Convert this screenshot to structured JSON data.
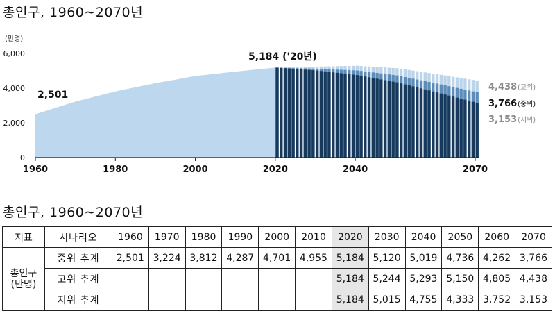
{
  "title": "총인구, 1960∼2070년",
  "table_title": "총인구, 1960∼2070년",
  "chart_data": {
    "type": "area",
    "ylabel": "(만명)",
    "ylim": [
      0,
      6000
    ],
    "yticks": [
      "0",
      "2,000",
      "4,000",
      "6,000"
    ],
    "xlim": [
      1960,
      2070
    ],
    "xticks": [
      "1960",
      "1980",
      "2000",
      "2020",
      "2040",
      "2070"
    ],
    "historical": {
      "x": [
        1960,
        1970,
        1980,
        1990,
        2000,
        2010,
        2020
      ],
      "values": [
        2501,
        3224,
        3812,
        4287,
        4701,
        4955,
        5184
      ]
    },
    "projection_x": [
      2020,
      2030,
      2040,
      2050,
      2060,
      2070
    ],
    "series": [
      {
        "key": "high",
        "values": [
          5184,
          5244,
          5293,
          5150,
          4805,
          4438
        ],
        "color": "#bcd4ea"
      },
      {
        "key": "medium",
        "values": [
          5184,
          5120,
          5019,
          4736,
          4262,
          3766
        ],
        "color": "#5b8db8"
      },
      {
        "key": "low",
        "values": [
          5184,
          5015,
          4755,
          4333,
          3752,
          3153
        ],
        "color": "#16395c"
      }
    ],
    "colors": {
      "historical": "#bdd7ee",
      "bar_lines": "#ffffff"
    },
    "annotations": {
      "start": "2,501",
      "peak": "5,184 ('20년)",
      "high_value": "4,438",
      "high_label": "(고위)",
      "medium_value": "3,766",
      "medium_label": "(중위)",
      "low_value": "3,153",
      "low_label": "(저위)"
    }
  },
  "table": {
    "header": {
      "indicator": "지표",
      "scenario": "시나리오",
      "years": [
        "1960",
        "1970",
        "1980",
        "1990",
        "2000",
        "2010",
        "2020",
        "2030",
        "2040",
        "2050",
        "2060",
        "2070"
      ]
    },
    "row_label_line1": "총인구",
    "row_label_line2": "(만명)",
    "rows": [
      {
        "scenario": "중위 추계",
        "values": [
          "2,501",
          "3,224",
          "3,812",
          "4,287",
          "4,701",
          "4,955",
          "5,184",
          "5,120",
          "5,019",
          "4,736",
          "4,262",
          "3,766"
        ]
      },
      {
        "scenario": "고위 추계",
        "values": [
          "",
          "",
          "",
          "",
          "",
          "",
          "5,184",
          "5,244",
          "5,293",
          "5,150",
          "4,805",
          "4,438"
        ]
      },
      {
        "scenario": "저위 추계",
        "values": [
          "",
          "",
          "",
          "",
          "",
          "",
          "5,184",
          "5,015",
          "4,755",
          "4,333",
          "3,752",
          "3,153"
        ]
      }
    ]
  }
}
